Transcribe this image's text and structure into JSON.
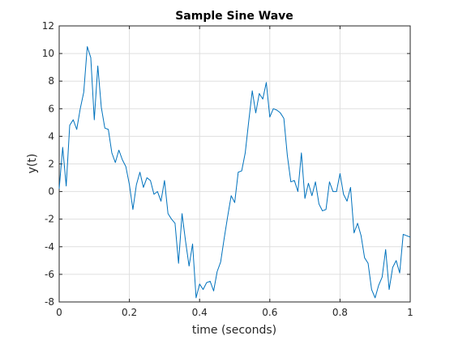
{
  "chart_data": {
    "type": "line",
    "title": "Sample Sine Wave",
    "xlabel": "time (seconds)",
    "ylabel": "y(t)",
    "xlim": [
      0,
      1
    ],
    "ylim": [
      -8,
      12
    ],
    "xticks": [
      0,
      0.2,
      0.4,
      0.6,
      0.8,
      1
    ],
    "xtick_labels": [
      "0",
      "0.2",
      "0.4",
      "0.6",
      "0.8",
      "1"
    ],
    "yticks": [
      -8,
      -6,
      -4,
      -2,
      0,
      2,
      4,
      6,
      8,
      10,
      12
    ],
    "ytick_labels": [
      "-8",
      "-6",
      "-4",
      "-2",
      "0",
      "2",
      "4",
      "6",
      "8",
      "10",
      "12"
    ],
    "grid": true,
    "line_color": "#0072bd",
    "series": [
      {
        "x": [
          0,
          0.01,
          0.02,
          0.03,
          0.04,
          0.05,
          0.06,
          0.07,
          0.08,
          0.09,
          0.1,
          0.11,
          0.12,
          0.13,
          0.14,
          0.15,
          0.16,
          0.17,
          0.18,
          0.19,
          0.2,
          0.21,
          0.22,
          0.23,
          0.24,
          0.25,
          0.26,
          0.27,
          0.28,
          0.29,
          0.3,
          0.31,
          0.32,
          0.33,
          0.34,
          0.35,
          0.36,
          0.37,
          0.38,
          0.39,
          0.4,
          0.41,
          0.42,
          0.43,
          0.44,
          0.45,
          0.46,
          0.47,
          0.48,
          0.49,
          0.5,
          0.51,
          0.52,
          0.53,
          0.54,
          0.55,
          0.56,
          0.57,
          0.58,
          0.59,
          0.6,
          0.61,
          0.62,
          0.63,
          0.64,
          0.65,
          0.66,
          0.67,
          0.68,
          0.69,
          0.7,
          0.71,
          0.72,
          0.73,
          0.74,
          0.75,
          0.76,
          0.77,
          0.78,
          0.79,
          0.8,
          0.81,
          0.82,
          0.83,
          0.84,
          0.85,
          0.86,
          0.87,
          0.88,
          0.89,
          0.9,
          0.91,
          0.92,
          0.93,
          0.94,
          0.95,
          0.96,
          0.97,
          0.98,
          0.99,
          1.0
        ],
        "y": [
          0.2,
          3.2,
          0.4,
          4.8,
          5.2,
          4.5,
          6.0,
          7.2,
          10.5,
          9.7,
          5.2,
          9.1,
          6.1,
          4.6,
          4.5,
          2.8,
          2.1,
          3.0,
          2.3,
          1.8,
          0.5,
          -1.3,
          0.5,
          1.4,
          0.3,
          1.0,
          0.8,
          -0.2,
          0.0,
          -0.7,
          0.8,
          -1.6,
          -2.0,
          -2.3,
          -5.2,
          -1.6,
          -3.6,
          -5.4,
          -3.8,
          -7.7,
          -6.7,
          -7.1,
          -6.6,
          -6.5,
          -7.2,
          -5.8,
          -5.1,
          -3.4,
          -1.8,
          -0.3,
          -0.8,
          1.4,
          1.5,
          2.8,
          5.1,
          7.3,
          5.7,
          7.1,
          6.7,
          7.9,
          5.4,
          6.0,
          5.9,
          5.7,
          5.3,
          2.6,
          0.7,
          0.8,
          0.0,
          2.8,
          -0.5,
          0.6,
          -0.3,
          0.7,
          -0.9,
          -1.4,
          -1.3,
          0.7,
          0.0,
          0.0,
          1.3,
          -0.2,
          -0.7,
          0.3,
          -3.0,
          -2.3,
          -3.2,
          -4.8,
          -5.2,
          -7.1,
          -7.7,
          -6.8,
          -6.2,
          -4.2,
          -7.1,
          -5.5,
          -5.0,
          -5.9,
          -3.1,
          -3.2,
          -3.3
        ]
      }
    ]
  }
}
